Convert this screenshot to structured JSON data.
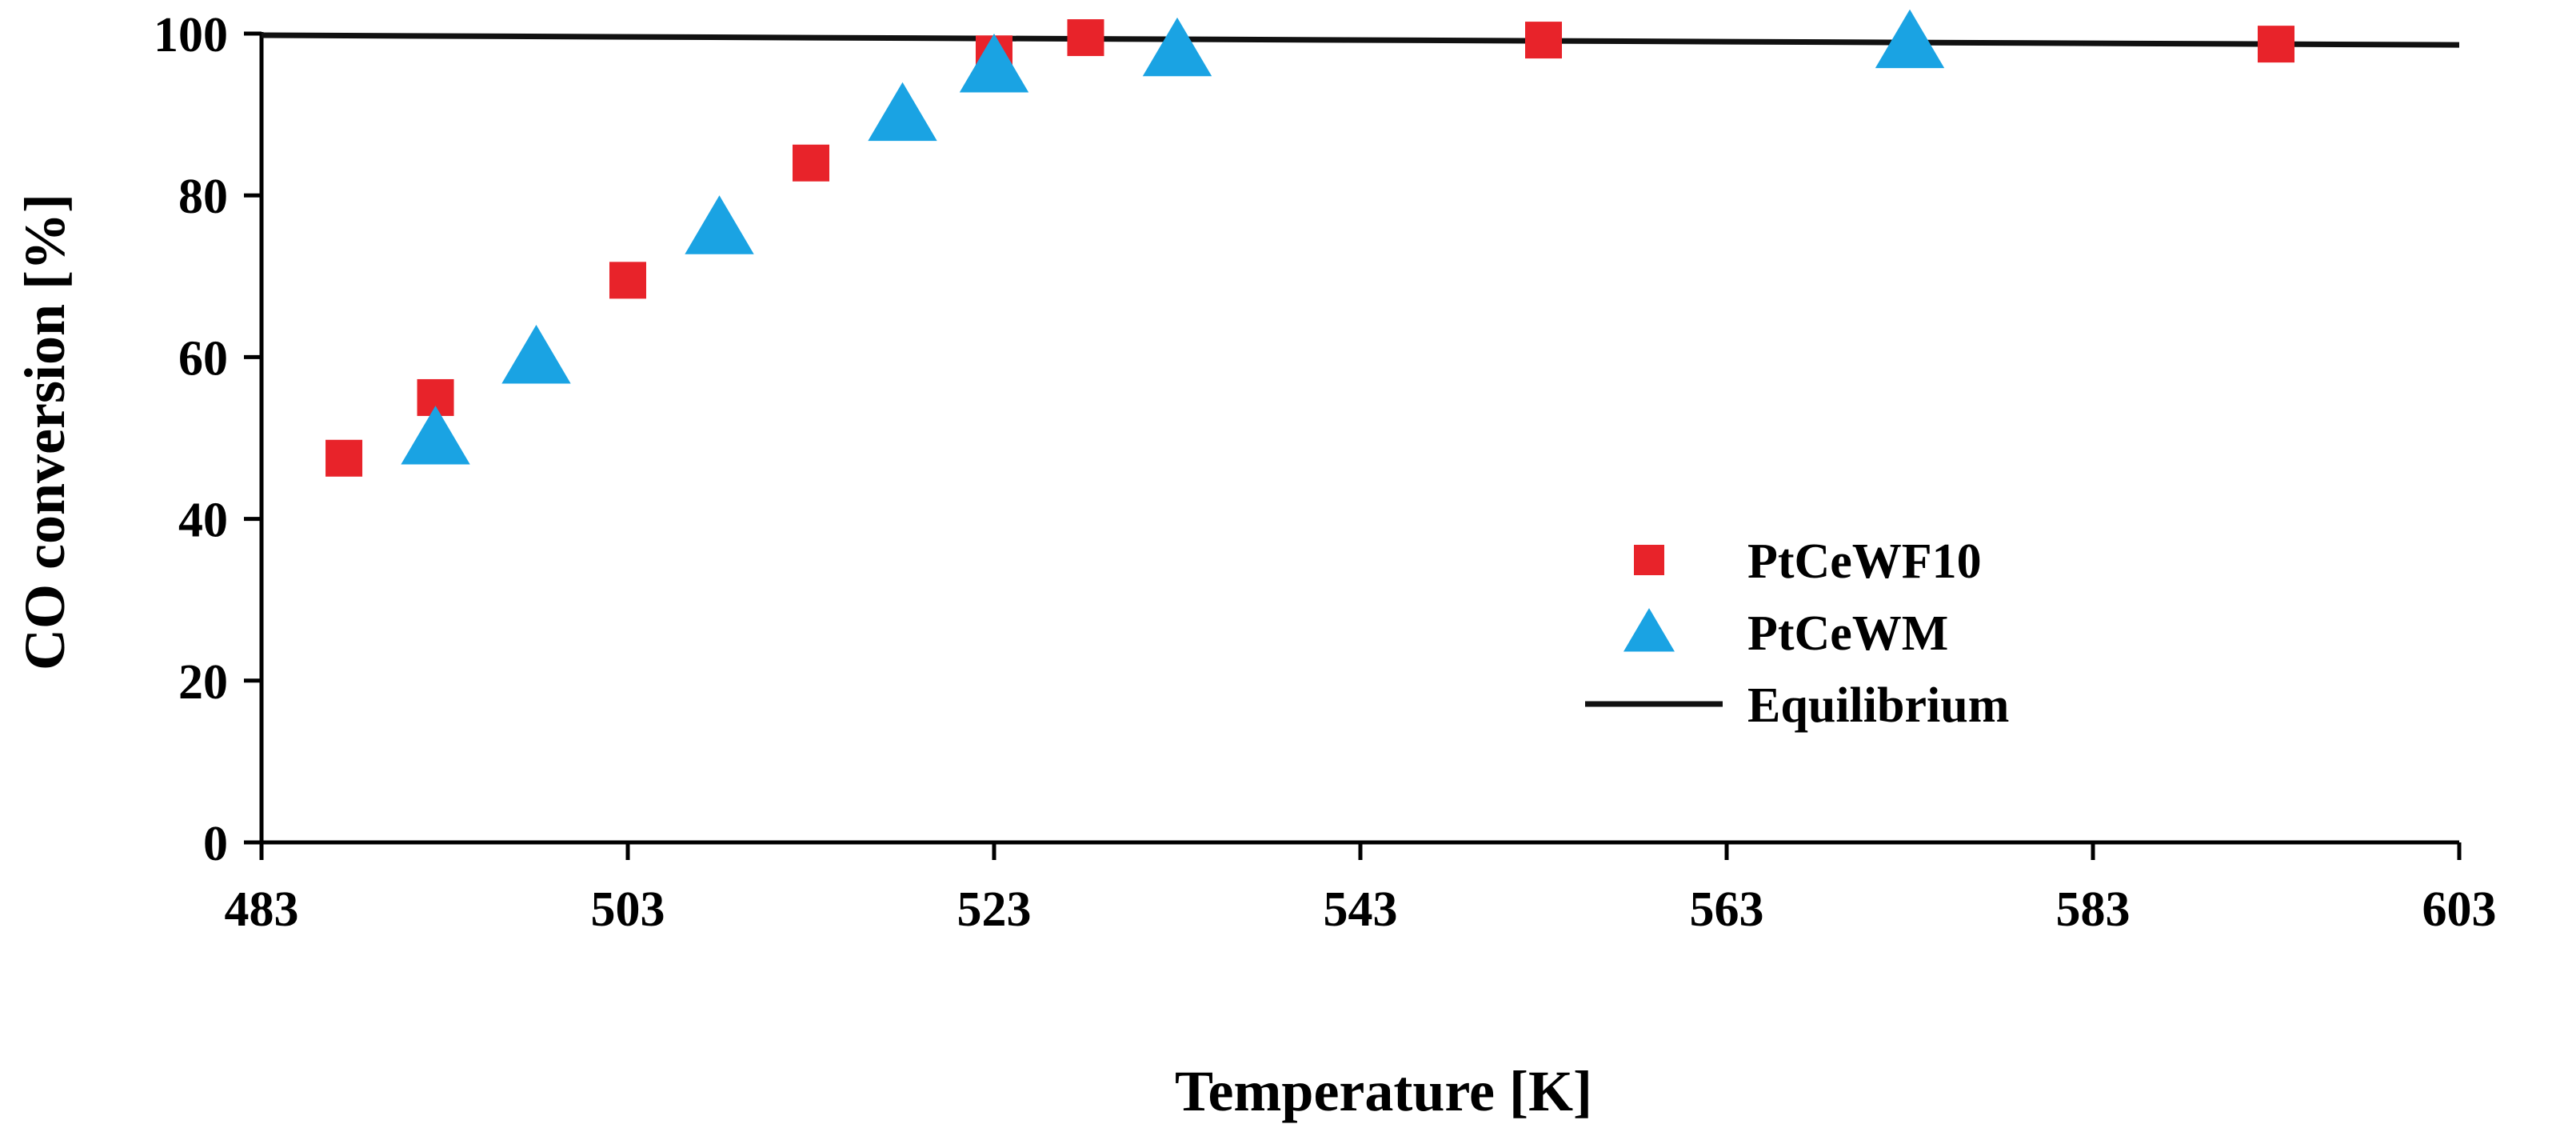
{
  "chart_data": {
    "type": "scatter",
    "title": "",
    "xlabel": "Temperature [K]",
    "ylabel": "CO conversion [%]",
    "xlim": [
      483,
      603
    ],
    "ylim": [
      0,
      100
    ],
    "xticks": [
      483,
      503,
      523,
      543,
      563,
      583,
      603
    ],
    "yticks": [
      0,
      20,
      40,
      60,
      80,
      100
    ],
    "grid": false,
    "legend_position": "right",
    "series": [
      {
        "name": "PtCeWF10",
        "marker": "square",
        "color": "#e8232a",
        "points": [
          {
            "x": 487.5,
            "y": 47.5
          },
          {
            "x": 492.5,
            "y": 55
          },
          {
            "x": 503,
            "y": 69.5
          },
          {
            "x": 513,
            "y": 84
          },
          {
            "x": 523,
            "y": 97.5
          },
          {
            "x": 528,
            "y": 99.5
          },
          {
            "x": 553,
            "y": 99.2
          },
          {
            "x": 593,
            "y": 98.7
          }
        ]
      },
      {
        "name": "PtCeWM",
        "marker": "triangle",
        "color": "#1aa3e3",
        "points": [
          {
            "x": 492.5,
            "y": 50
          },
          {
            "x": 498,
            "y": 60
          },
          {
            "x": 508,
            "y": 76
          },
          {
            "x": 518,
            "y": 90
          },
          {
            "x": 523,
            "y": 96
          },
          {
            "x": 533,
            "y": 98
          },
          {
            "x": 573,
            "y": 99
          }
        ]
      },
      {
        "name": "Equilibrium",
        "marker": "line",
        "color": "#111111",
        "points": [
          {
            "x": 483,
            "y": 99.8
          },
          {
            "x": 603,
            "y": 98.6
          }
        ]
      }
    ]
  }
}
